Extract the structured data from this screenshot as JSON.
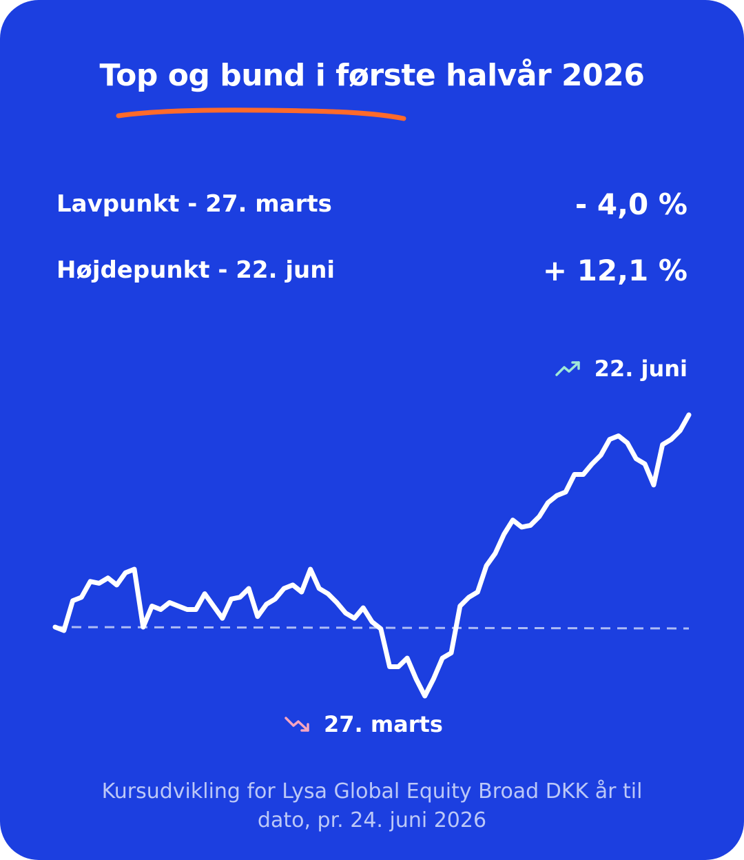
{
  "title": "Top og bund i første halvår 2026",
  "colors": {
    "background": "#1c3fe0",
    "underline": "#ff6a2a",
    "line": "#ffffff",
    "baseline": "#aebcf5",
    "up_arrow": "#9fe8d6",
    "down_arrow": "#f6a5c0",
    "footnote": "#bcc8f7"
  },
  "stats": {
    "low_label": "Lavpunkt - 27. marts",
    "low_value": "- 4,0 %",
    "high_label": "Højdepunkt - 22. juni",
    "high_value": "+ 12,1 %"
  },
  "annotations": {
    "high": {
      "label": "22. juni",
      "icon": "trending-up-icon"
    },
    "low": {
      "label": "27. marts",
      "icon": "trending-down-icon"
    }
  },
  "footnote": {
    "line1": "Kursudvikling for Lysa Global Equity Broad DKK år til",
    "line2": "dato, pr. 24. juni 2026"
  },
  "chart_data": {
    "type": "line",
    "title": "Top og bund i første halvår 2026",
    "xlabel": "",
    "ylabel": "",
    "baseline": 0,
    "ylim": [
      -4.0,
      12.1
    ],
    "grid": false,
    "series": [
      {
        "values": [
          0.0,
          -0.2,
          1.5,
          1.7,
          2.6,
          2.5,
          2.8,
          2.4,
          3.1,
          3.3,
          0.0,
          1.2,
          1.0,
          1.4,
          1.2,
          1.0,
          1.0,
          1.9,
          1.2,
          0.5,
          1.6,
          1.7,
          2.2,
          0.6,
          1.3,
          1.6,
          2.2,
          2.4,
          2.0,
          3.3,
          2.2,
          1.9,
          1.4,
          0.8,
          0.5,
          1.1,
          0.3,
          -0.1,
          -2.3,
          -2.3,
          -1.8,
          -3.0,
          -4.0,
          -3.0,
          -1.8,
          -1.5,
          1.2,
          1.7,
          2.0,
          3.5,
          4.2,
          5.3,
          6.1,
          5.7,
          5.8,
          6.3,
          7.1,
          7.5,
          7.7,
          8.7,
          8.7,
          9.3,
          9.8,
          10.7,
          10.9,
          10.5,
          9.6,
          9.3,
          8.1,
          10.4,
          10.7,
          11.2,
          12.1
        ]
      }
    ]
  }
}
